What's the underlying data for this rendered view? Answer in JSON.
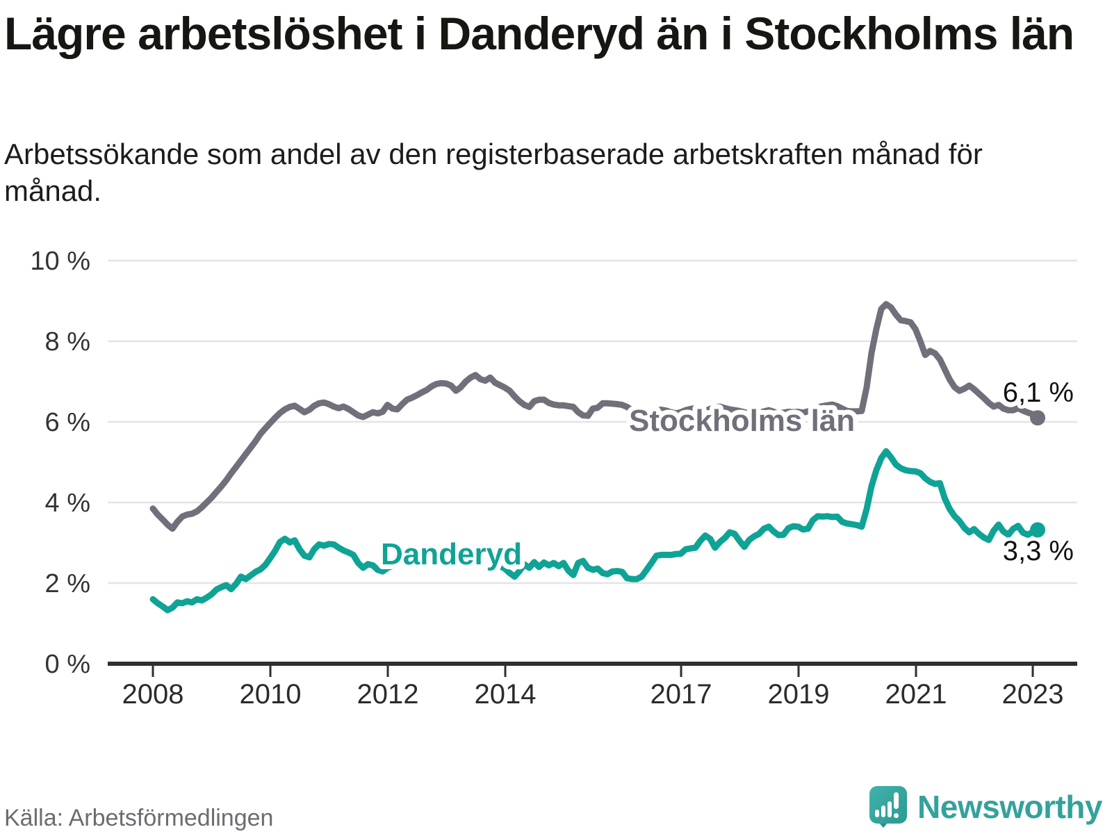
{
  "header": {
    "title": "Lägre arbetslöshet i Danderyd än i Stockholms län",
    "subtitle": "Arbetssökande som andel av den registerbaserade arbetskraften månad för månad."
  },
  "source": {
    "label": "Källa: Arbetsförmedlingen"
  },
  "branding": {
    "name": "Newsworthy",
    "icon": "newsworthy-speech-bubble-barchart-icon",
    "icon_color": "#2fa8a0",
    "text_color": "#33a29b"
  },
  "chart_data": {
    "type": "line",
    "title": "Lägre arbetslöshet i Danderyd än i Stockholms län",
    "subtitle": "Arbetssökande som andel av den registerbaserade arbetskraften månad för månad.",
    "frequency": "monthly",
    "x_start": "2008-01",
    "x_end": "2023-02",
    "ylim": [
      0,
      10
    ],
    "grid": "horizontal",
    "legend_position": "inline-labels",
    "y_ticks": [
      "10 %",
      "8 %",
      "6 %",
      "4 %",
      "2 %",
      "0 %"
    ],
    "x_ticks": [
      "2008",
      "2010",
      "2012",
      "2014",
      "2017",
      "2019",
      "2021",
      "2023"
    ],
    "series": [
      {
        "name": "Stockholms län",
        "color": "#706f7a",
        "end_label": "6,1 %",
        "end_value": 6.1,
        "values": [
          3.85,
          3.7,
          3.58,
          3.45,
          3.35,
          3.52,
          3.65,
          3.7,
          3.72,
          3.78,
          3.88,
          4.0,
          4.12,
          4.26,
          4.4,
          4.55,
          4.72,
          4.88,
          5.04,
          5.2,
          5.36,
          5.52,
          5.7,
          5.84,
          5.97,
          6.1,
          6.22,
          6.31,
          6.37,
          6.4,
          6.32,
          6.24,
          6.3,
          6.4,
          6.46,
          6.48,
          6.44,
          6.38,
          6.34,
          6.38,
          6.32,
          6.24,
          6.16,
          6.12,
          6.18,
          6.24,
          6.21,
          6.25,
          6.42,
          6.33,
          6.31,
          6.44,
          6.55,
          6.6,
          6.66,
          6.73,
          6.79,
          6.88,
          6.94,
          6.96,
          6.95,
          6.9,
          6.77,
          6.86,
          7.0,
          7.1,
          7.16,
          7.06,
          7.02,
          7.1,
          6.97,
          6.91,
          6.85,
          6.77,
          6.63,
          6.51,
          6.42,
          6.37,
          6.51,
          6.55,
          6.55,
          6.47,
          6.43,
          6.41,
          6.41,
          6.39,
          6.37,
          6.24,
          6.16,
          6.15,
          6.33,
          6.35,
          6.46,
          6.46,
          6.45,
          6.44,
          6.42,
          6.37,
          6.29,
          6.24,
          6.21,
          6.2,
          6.26,
          6.29,
          6.3,
          6.28,
          6.24,
          6.21,
          6.24,
          6.29,
          6.32,
          6.34,
          6.3,
          6.27,
          6.32,
          6.36,
          6.38,
          6.34,
          6.31,
          6.29,
          6.27,
          6.24,
          6.21,
          6.19,
          6.22,
          6.26,
          6.29,
          6.25,
          6.21,
          6.23,
          6.25,
          6.24,
          6.25,
          6.23,
          6.26,
          6.31,
          6.36,
          6.39,
          6.41,
          6.43,
          6.39,
          6.33,
          6.27,
          6.26,
          6.26,
          6.27,
          6.85,
          7.7,
          8.3,
          8.8,
          8.92,
          8.84,
          8.66,
          8.52,
          8.5,
          8.47,
          8.3,
          8.0,
          7.66,
          7.76,
          7.7,
          7.55,
          7.3,
          7.05,
          6.86,
          6.77,
          6.82,
          6.9,
          6.81,
          6.7,
          6.59,
          6.47,
          6.38,
          6.42,
          6.33,
          6.29,
          6.29,
          6.34,
          6.28,
          6.23,
          6.19,
          6.1
        ]
      },
      {
        "name": "Danderyd",
        "color": "#0fa396",
        "end_label": "3,3 %",
        "end_value": 3.3,
        "values": [
          1.6,
          1.5,
          1.42,
          1.33,
          1.39,
          1.52,
          1.5,
          1.55,
          1.52,
          1.6,
          1.57,
          1.64,
          1.72,
          1.84,
          1.9,
          1.95,
          1.85,
          1.98,
          2.16,
          2.1,
          2.19,
          2.28,
          2.34,
          2.45,
          2.62,
          2.8,
          3.02,
          3.1,
          3.01,
          3.06,
          2.84,
          2.68,
          2.64,
          2.84,
          2.96,
          2.93,
          2.97,
          2.96,
          2.88,
          2.81,
          2.76,
          2.7,
          2.5,
          2.38,
          2.47,
          2.44,
          2.33,
          2.29,
          2.38,
          2.42,
          2.47,
          2.53,
          2.58,
          2.62,
          2.58,
          2.65,
          2.6,
          2.68,
          2.62,
          2.58,
          2.62,
          2.7,
          2.66,
          2.72,
          2.68,
          2.76,
          2.72,
          2.65,
          2.7,
          2.6,
          2.5,
          2.42,
          2.36,
          2.25,
          2.16,
          2.3,
          2.46,
          2.38,
          2.52,
          2.4,
          2.51,
          2.44,
          2.5,
          2.42,
          2.5,
          2.31,
          2.2,
          2.5,
          2.55,
          2.38,
          2.33,
          2.36,
          2.25,
          2.22,
          2.29,
          2.3,
          2.28,
          2.12,
          2.1,
          2.1,
          2.16,
          2.33,
          2.5,
          2.68,
          2.7,
          2.7,
          2.7,
          2.72,
          2.73,
          2.84,
          2.86,
          2.88,
          3.05,
          3.18,
          3.1,
          2.88,
          3.02,
          3.12,
          3.26,
          3.22,
          3.05,
          2.9,
          3.07,
          3.16,
          3.22,
          3.35,
          3.4,
          3.28,
          3.19,
          3.2,
          3.36,
          3.41,
          3.4,
          3.33,
          3.35,
          3.56,
          3.66,
          3.65,
          3.66,
          3.64,
          3.65,
          3.52,
          3.48,
          3.46,
          3.44,
          3.4,
          3.83,
          4.4,
          4.8,
          5.1,
          5.27,
          5.12,
          4.94,
          4.85,
          4.8,
          4.78,
          4.77,
          4.73,
          4.6,
          4.51,
          4.46,
          4.48,
          4.1,
          3.84,
          3.66,
          3.54,
          3.37,
          3.26,
          3.34,
          3.22,
          3.13,
          3.07,
          3.3,
          3.45,
          3.28,
          3.2,
          3.35,
          3.42,
          3.25,
          3.2,
          3.27,
          3.32
        ]
      }
    ]
  }
}
